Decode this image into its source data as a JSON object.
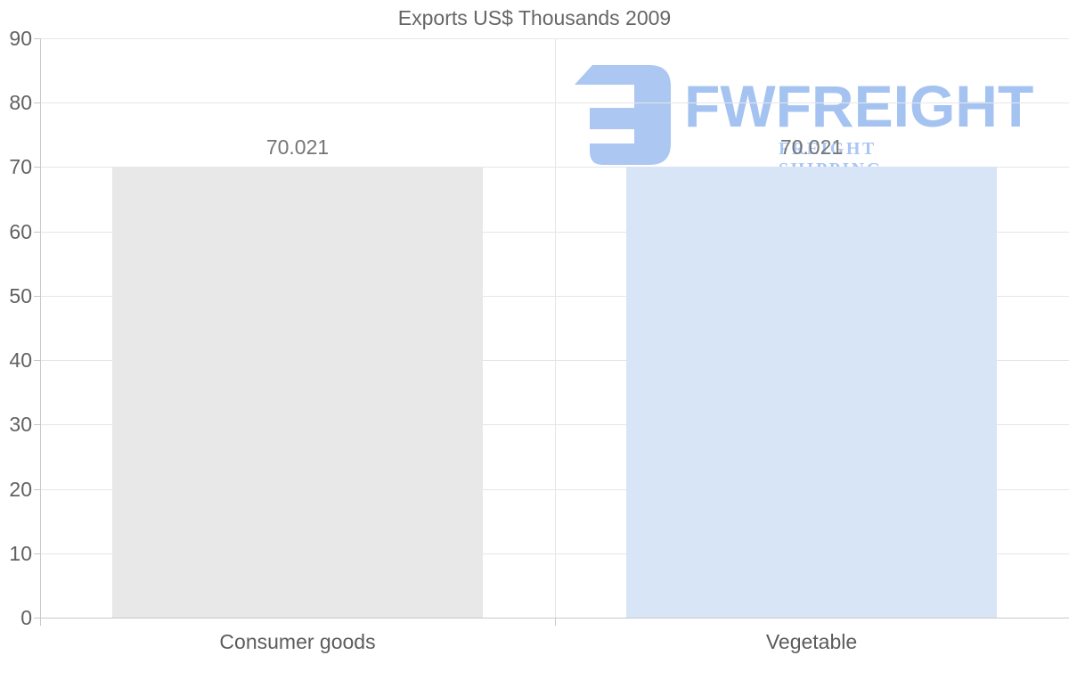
{
  "chart_data": {
    "type": "bar",
    "title": "Exports US$ Thousands 2009",
    "categories": [
      "Consumer goods",
      "Vegetable"
    ],
    "values": [
      70.021,
      70.021
    ],
    "value_labels": [
      "70.021",
      "70.021"
    ],
    "bar_colors": [
      "#e8e8e8",
      "#d7e5f7"
    ],
    "xlabel": "",
    "ylabel": "",
    "ylim": [
      0,
      90
    ],
    "yticks": [
      0,
      10,
      20,
      30,
      40,
      50,
      60,
      70,
      80,
      90
    ],
    "grid": "horizontal gridlines plus one vertical column divider",
    "legend_position": "none"
  },
  "watermark": {
    "brand": "FWFREIGHT",
    "tagline": "FREIGHT SHIPPING",
    "logo_icon": "fwfreight-monogram-icon",
    "logo_color": "#abc7f2",
    "brand_color": "#a5c3f1",
    "tagline_color": "#a9c6f3"
  },
  "style_colors": {
    "axis_line": "#c9c9c9",
    "grid_line": "#e6e6e6",
    "title_text": "#666666",
    "tick_text": "#616161",
    "value_text": "#757575",
    "category_text": "#5c5c5c",
    "background": "#ffffff"
  }
}
